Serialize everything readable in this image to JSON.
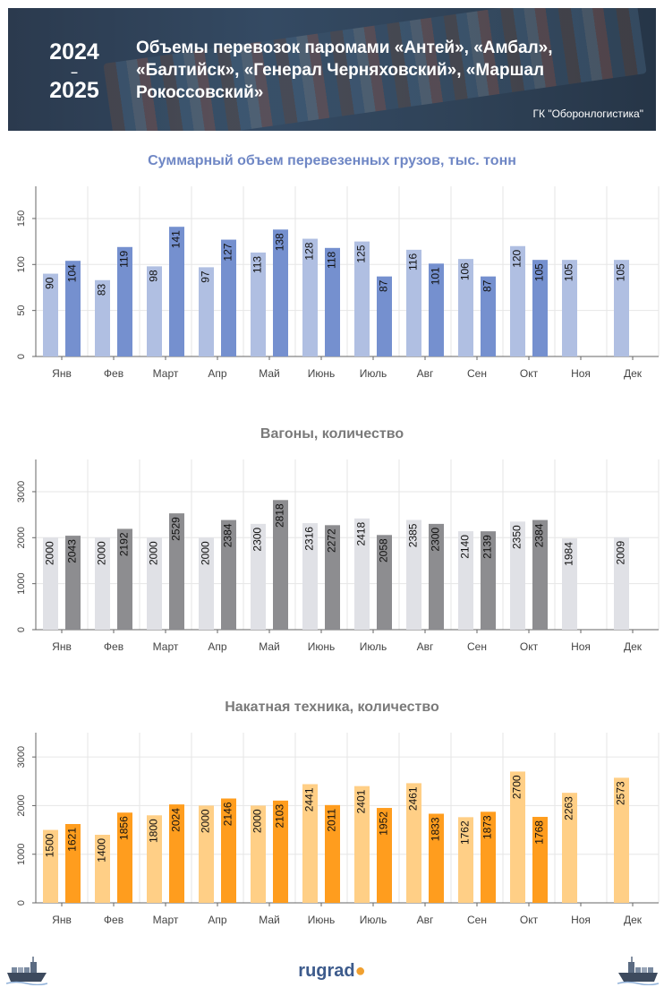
{
  "header": {
    "year_start": "2024",
    "year_sep": "–",
    "year_end": "2025",
    "title": "Объемы перевозок паромами «Антей», «Амбал», «Балтийск», «Генерал Черняховский», «Маршал Рокоссовский»",
    "source": "ГК \"Оборонлогистика\""
  },
  "footer": {
    "logo_text": "rugrad",
    "logo_dot": "●"
  },
  "icons": {
    "left": "cargo-ship-icon",
    "right": "cargo-ship-icon"
  },
  "chart_data": [
    {
      "type": "bar",
      "title": "Суммарный объем перевезенных грузов, тыс. тонн",
      "title_color": "#6f87c5",
      "categories": [
        "Янв",
        "Фев",
        "Март",
        "Апр",
        "Май",
        "Июнь",
        "Июль",
        "Авг",
        "Сен",
        "Окт",
        "Ноя",
        "Дек"
      ],
      "series": [
        {
          "name": "2024",
          "color": "#b0bfe2",
          "values": [
            90,
            83,
            98,
            97,
            113,
            128,
            125,
            116,
            106,
            120,
            105,
            105
          ]
        },
        {
          "name": "2025",
          "color": "#7590cf",
          "values": [
            104,
            119,
            141,
            127,
            138,
            118,
            87,
            101,
            87,
            105,
            null,
            null
          ]
        }
      ],
      "ylim": [
        0,
        185
      ],
      "yticks": [
        0,
        50,
        100,
        150
      ]
    },
    {
      "type": "bar",
      "title": "Вагоны, количество",
      "title_color": "#7a7a7a",
      "categories": [
        "Янв",
        "Фев",
        "Март",
        "Апр",
        "Май",
        "Июнь",
        "Июль",
        "Авг",
        "Сен",
        "Окт",
        "Ноя",
        "Дек"
      ],
      "series": [
        {
          "name": "2024",
          "color": "#e0e1e6",
          "values": [
            2000,
            2000,
            2000,
            2000,
            2300,
            2316,
            2418,
            2385,
            2140,
            2350,
            1984,
            2009
          ]
        },
        {
          "name": "2025",
          "color": "#8d8d90",
          "values": [
            2043,
            2192,
            2529,
            2384,
            2818,
            2272,
            2058,
            2300,
            2139,
            2384,
            null,
            null
          ]
        }
      ],
      "ylim": [
        0,
        3700
      ],
      "yticks": [
        0,
        1000,
        2000,
        3000
      ]
    },
    {
      "type": "bar",
      "title": "Накатная техника, количество",
      "title_color": "#7a7a7a",
      "categories": [
        "Янв",
        "Фев",
        "Март",
        "Апр",
        "Май",
        "Июнь",
        "Июль",
        "Авг",
        "Сен",
        "Окт",
        "Ноя",
        "Дек"
      ],
      "series": [
        {
          "name": "2024",
          "color": "#ffcf86",
          "values": [
            1500,
            1400,
            1800,
            2000,
            2000,
            2441,
            2401,
            2461,
            1762,
            2700,
            2263,
            2573
          ]
        },
        {
          "name": "2025",
          "color": "#ff9d1e",
          "values": [
            1621,
            1856,
            2024,
            2146,
            2103,
            2011,
            1952,
            1833,
            1873,
            1768,
            null,
            null
          ]
        }
      ],
      "ylim": [
        0,
        3500
      ],
      "yticks": [
        0,
        1000,
        2000,
        3000
      ]
    }
  ]
}
